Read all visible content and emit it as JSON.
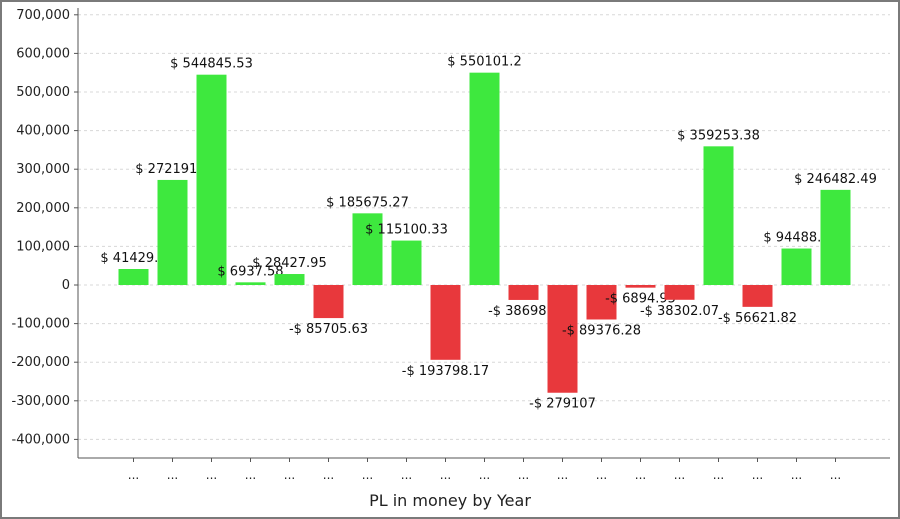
{
  "chart_data": {
    "type": "bar",
    "xlabel": "PL in money by Year",
    "ylabel": "",
    "ylim": [
      -450000,
      720000
    ],
    "yticks": [
      700000,
      600000,
      500000,
      400000,
      300000,
      200000,
      100000,
      0,
      -100000,
      -200000,
      -300000,
      -400000
    ],
    "ytick_labels": [
      "700,000",
      "600,000",
      "500,000",
      "400,000",
      "300,000",
      "200,000",
      "100,000",
      "0",
      "-100,000",
      "-200,000",
      "-300,000",
      "-400,000"
    ],
    "grid": true,
    "categories": [
      "...",
      "...",
      "...",
      "...",
      "...",
      "...",
      "...",
      "...",
      "...",
      "...",
      "...",
      "...",
      "...",
      "...",
      "...",
      "...",
      "...",
      "...",
      "..."
    ],
    "values": [
      41429.3,
      272191.7,
      544845.53,
      6937.58,
      28427.95,
      -85705.63,
      185675.27,
      115100.33,
      -193798.17,
      550101.2,
      -38698.5,
      -279107,
      -89376.28,
      -6894.95,
      -38302.07,
      359253.38,
      -56621.82,
      94488.2,
      246482.49
    ],
    "data_labels": [
      "$ 41429.3",
      "$ 272191.7",
      "$ 544845.53",
      "$ 6937.58",
      "$ 28427.95",
      "-$ 85705.63",
      "$ 185675.27",
      "$ 115100.33",
      "-$ 193798.17",
      "$ 550101.2",
      "-$ 38698.5",
      "-$ 279107",
      "-$ 89376.28",
      "-$ 6894.95",
      "-$ 38302.07",
      "$ 359253.38",
      "-$ 56621.82",
      "$ 94488.2",
      "$ 246482.49"
    ],
    "colors": {
      "positive": "#3ee83e",
      "negative": "#e8383c",
      "grid": "#d8d8d8",
      "axis": "#555555"
    }
  }
}
